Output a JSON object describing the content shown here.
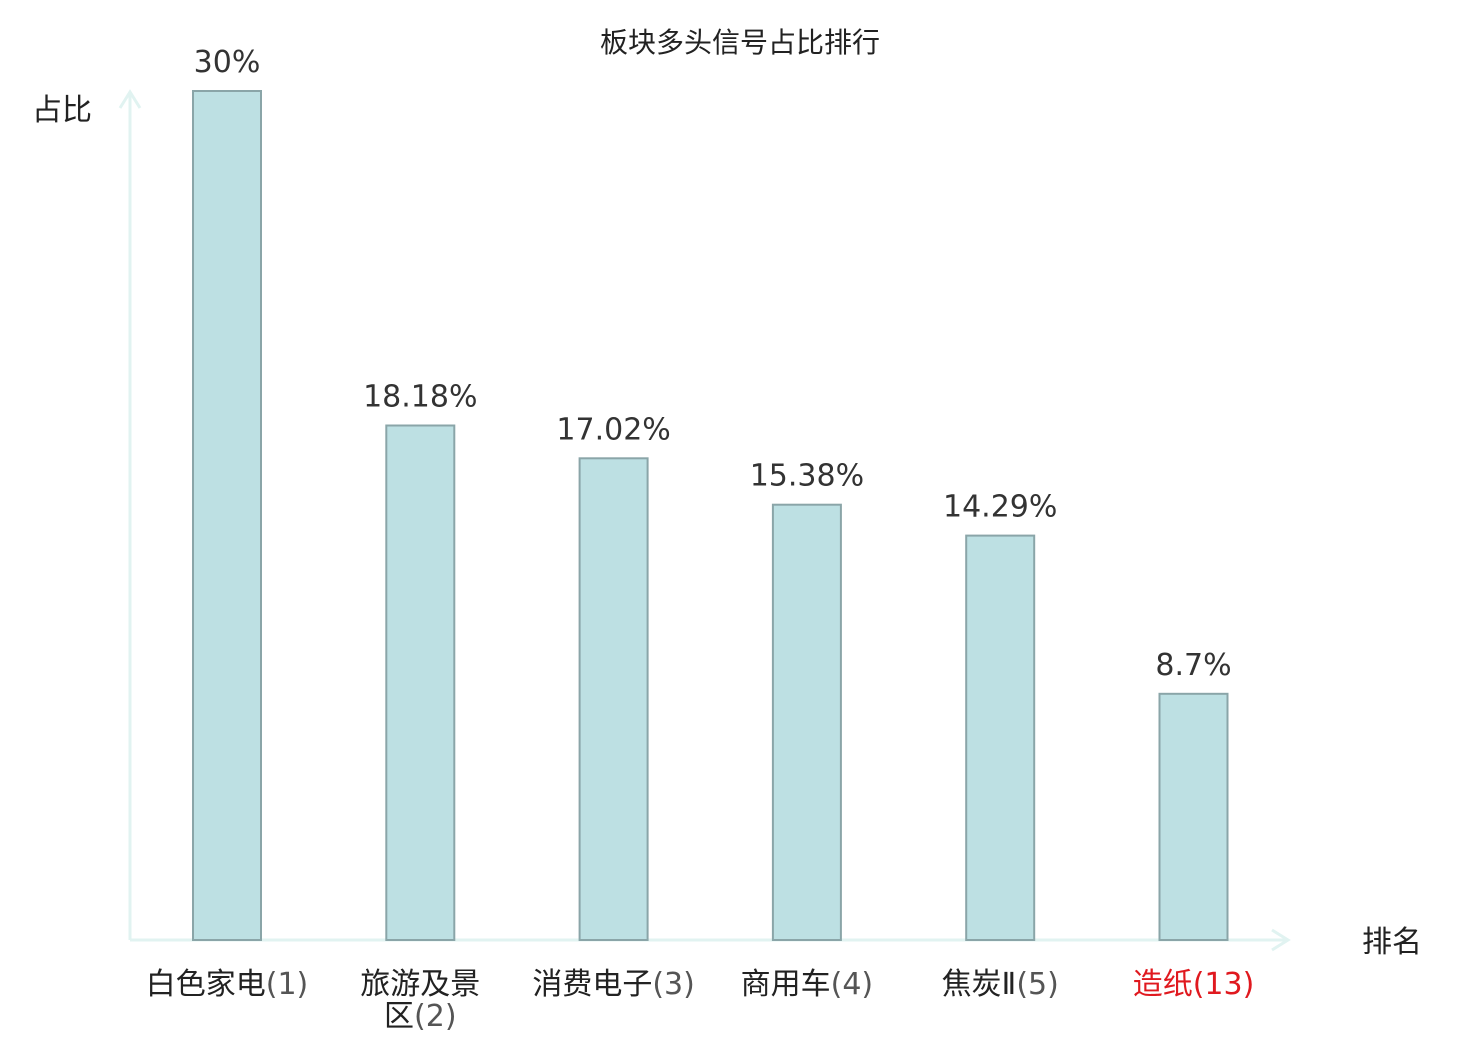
{
  "chart_data": {
    "type": "bar",
    "title": "板块多头信号占比排行",
    "ylabel": "占比",
    "xlabel": "排名",
    "categories": [
      {
        "name": "白色家电",
        "rank": "(1)",
        "highlight": false
      },
      {
        "name": "旅游及景区",
        "rank": "(2)",
        "highlight": false
      },
      {
        "name": "消费电子",
        "rank": "(3)",
        "highlight": false
      },
      {
        "name": "商用车",
        "rank": "(4)",
        "highlight": false
      },
      {
        "name": "焦炭Ⅱ",
        "rank": "(5)",
        "highlight": false
      },
      {
        "name": "造纸",
        "rank": "(13)",
        "highlight": true
      }
    ],
    "values": [
      30,
      18.18,
      17.02,
      15.38,
      14.29,
      8.7
    ],
    "value_labels": [
      "30%",
      "18.18%",
      "17.02%",
      "15.38%",
      "14.29%",
      "8.7%"
    ],
    "ylim": [
      0,
      30
    ],
    "grid": false,
    "legend": "none"
  },
  "colors": {
    "bar_fill": "#bde0e3",
    "bar_stroke": "#8aa5a8",
    "axis": "#e1f3f1",
    "text": "#222222",
    "value_text": "#333333",
    "rank_text": "#555555",
    "highlight": "#e0191f"
  }
}
